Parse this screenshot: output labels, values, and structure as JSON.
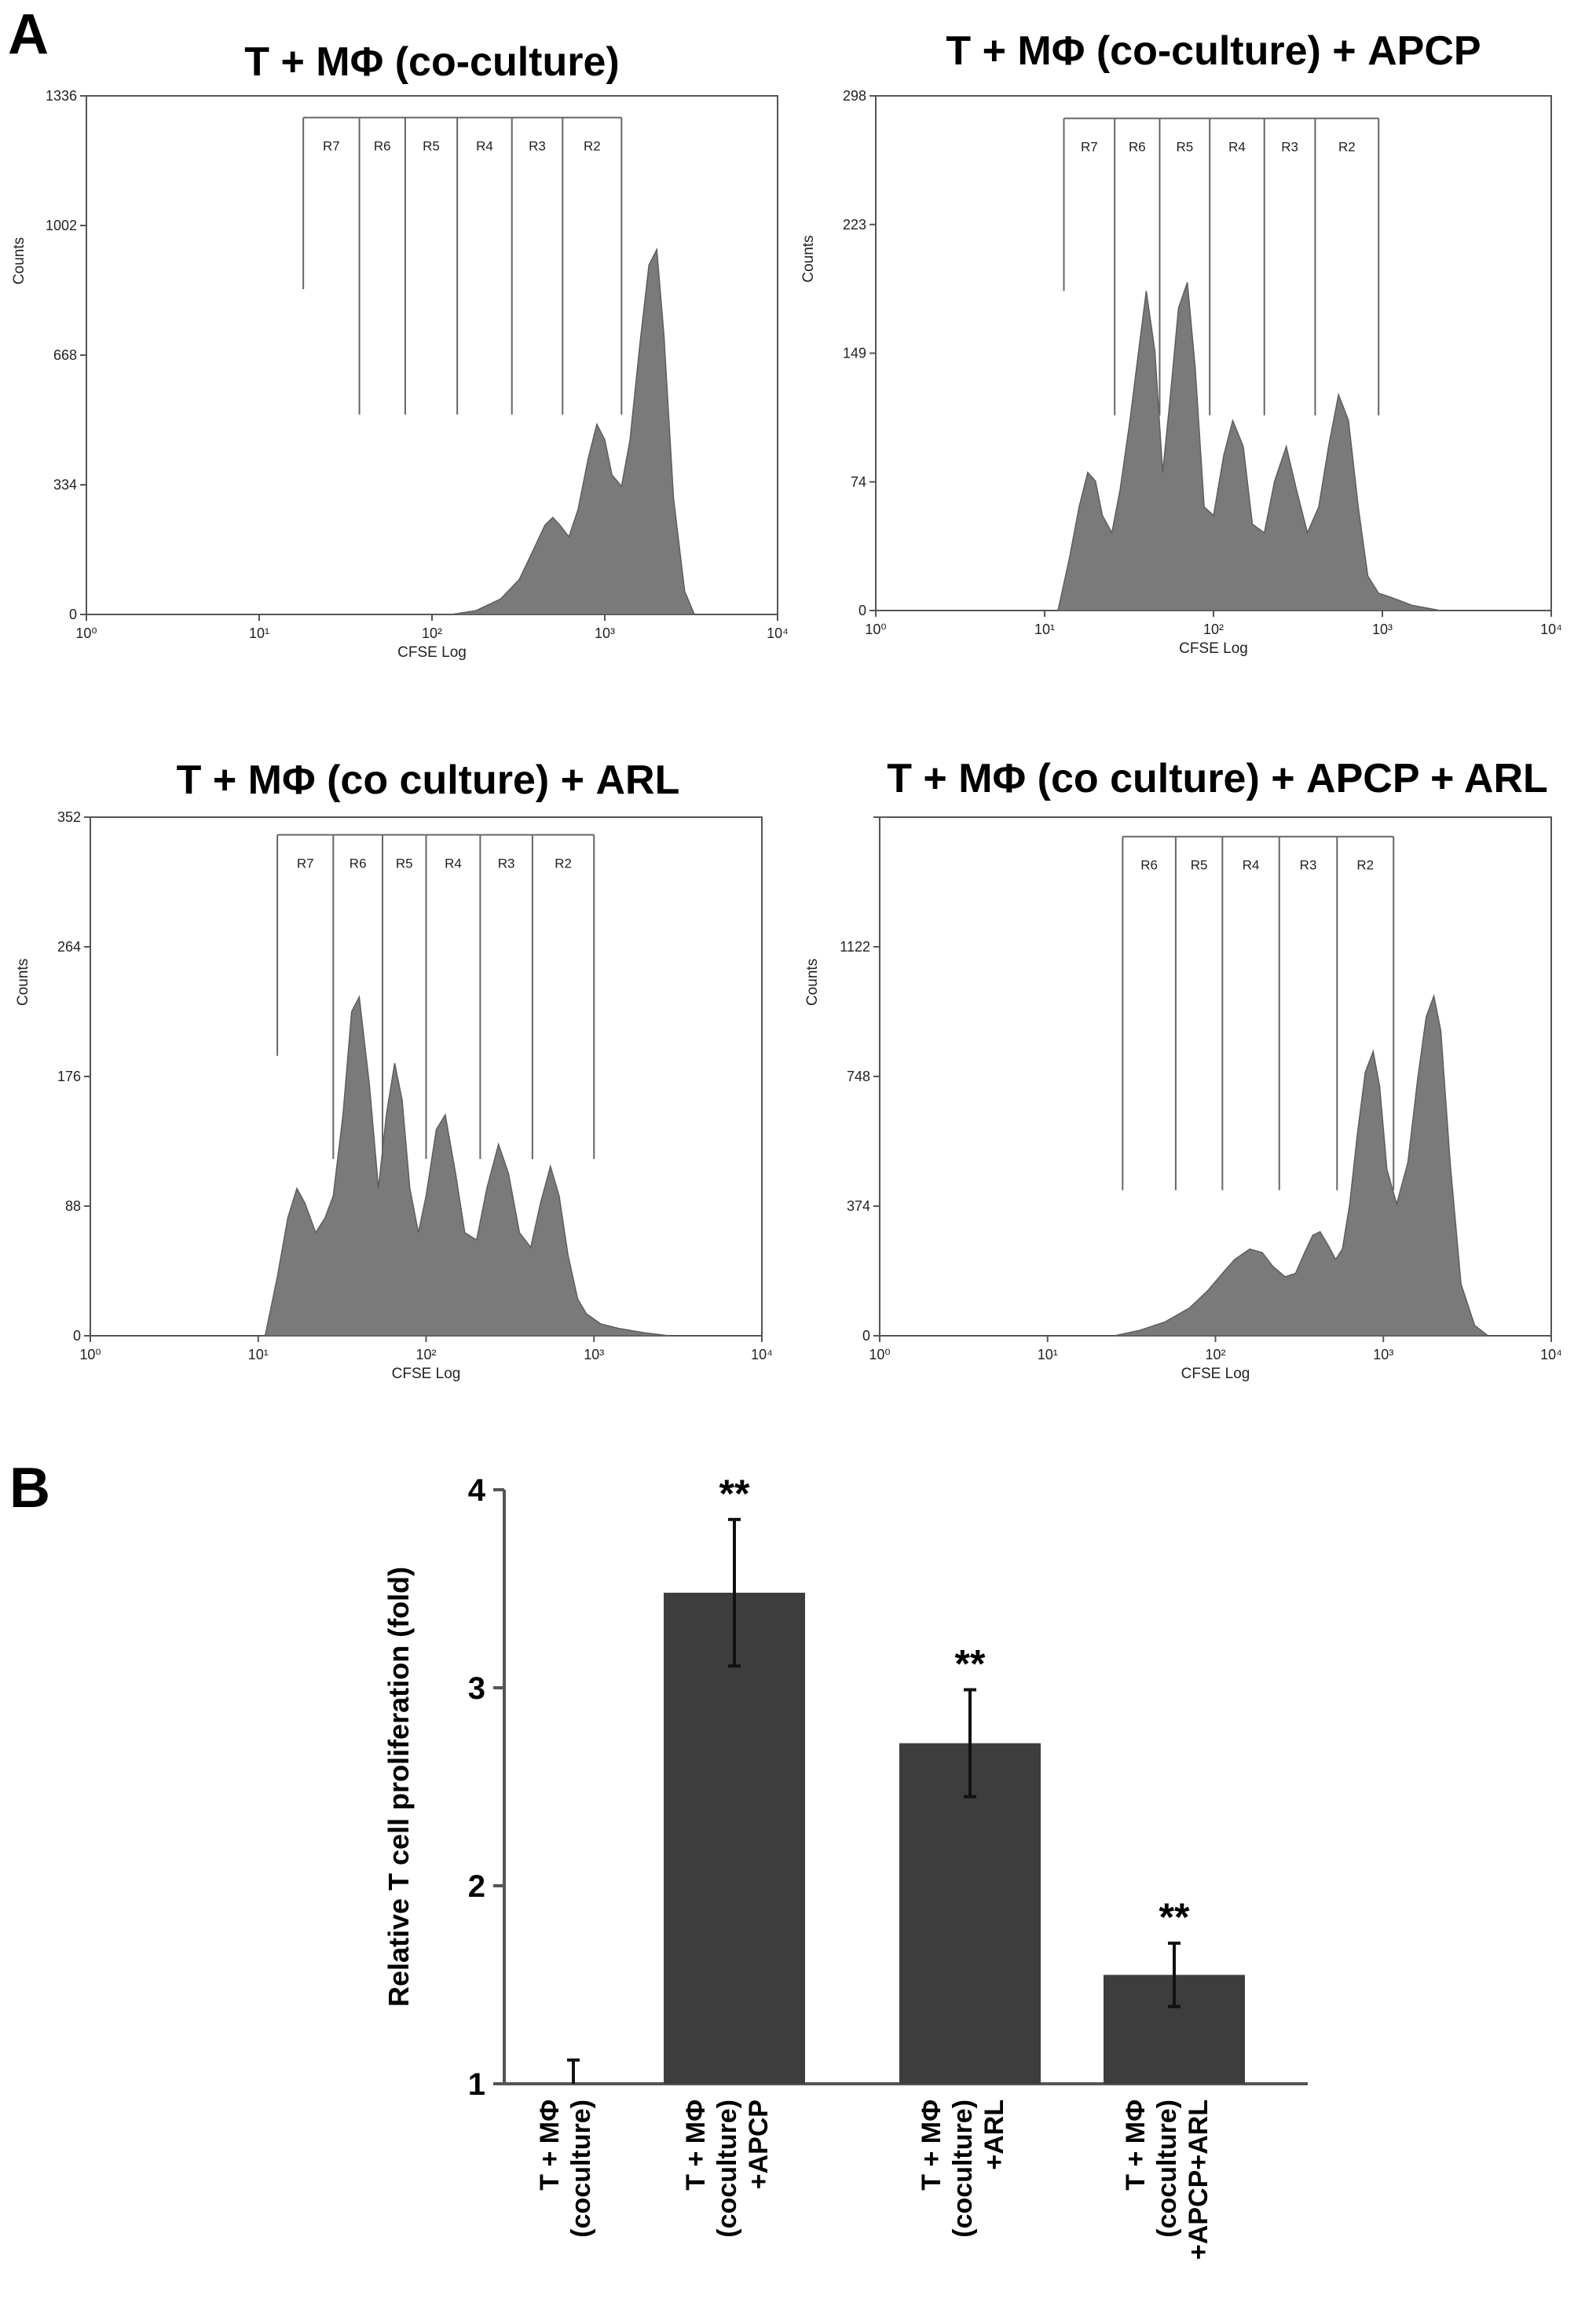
{
  "labels": {
    "panel_a": "A",
    "panel_b": "B"
  },
  "colors": {
    "histogram_fill": "#7a7a7a",
    "bar_fill": "#3d3d3d",
    "axis": "#555555",
    "gate_line": "#666666"
  },
  "chart_data": [
    {
      "type": "area",
      "title": "T + MΦ (co-culture)",
      "xlabel": "CFSE Log",
      "ylabel": "Counts",
      "x_scale": "log",
      "xlim": [
        1,
        10000
      ],
      "x_ticks": [
        1,
        10,
        100,
        1000,
        10000
      ],
      "ylim": [
        0,
        1336
      ],
      "y_ticks": [
        "0",
        "334",
        "668",
        "1002",
        "1336"
      ],
      "gates": [
        {
          "name": "R7",
          "from": 18,
          "to": 38,
          "top": 1280,
          "drop": 838
        },
        {
          "name": "R6",
          "from": 38,
          "to": 70,
          "top": 1280,
          "drop": 515
        },
        {
          "name": "R5",
          "from": 70,
          "to": 140,
          "top": 1280,
          "drop": 515
        },
        {
          "name": "R4",
          "from": 140,
          "to": 290,
          "top": 1280,
          "drop": 515
        },
        {
          "name": "R3",
          "from": 290,
          "to": 570,
          "top": 1280,
          "drop": 515
        },
        {
          "name": "R2",
          "from": 570,
          "to": 1250,
          "top": 1280,
          "drop": 515
        }
      ],
      "series": [
        {
          "x": [
            130,
            180,
            250,
            320,
            380,
            450,
            500,
            550,
            620,
            700,
            800,
            900,
            1000,
            1100,
            1250,
            1400,
            1600,
            1800,
            2000,
            2200,
            2500,
            2900,
            3300
          ],
          "y": [
            0,
            10,
            40,
            90,
            160,
            230,
            250,
            230,
            200,
            270,
            400,
            490,
            450,
            360,
            330,
            450,
            700,
            900,
            940,
            720,
            300,
            60,
            0
          ]
        }
      ]
    },
    {
      "type": "area",
      "title": "T + MΦ (co-culture) + APCP",
      "xlabel": "CFSE Log",
      "ylabel": "Counts",
      "x_scale": "log",
      "xlim": [
        1,
        10000
      ],
      "x_ticks": [
        1,
        10,
        100,
        1000,
        10000
      ],
      "ylim": [
        0,
        298
      ],
      "y_ticks": [
        "0",
        "74",
        "149",
        "223",
        "298"
      ],
      "gates": [
        {
          "name": "R7",
          "from": 13,
          "to": 26,
          "top": 285,
          "drop": 185
        },
        {
          "name": "R6",
          "from": 26,
          "to": 48,
          "top": 285,
          "drop": 113
        },
        {
          "name": "R5",
          "from": 48,
          "to": 95,
          "top": 285,
          "drop": 113
        },
        {
          "name": "R4",
          "from": 95,
          "to": 200,
          "top": 285,
          "drop": 113
        },
        {
          "name": "R3",
          "from": 200,
          "to": 400,
          "top": 285,
          "drop": 113
        },
        {
          "name": "R2",
          "from": 400,
          "to": 950,
          "top": 285,
          "drop": 113
        }
      ],
      "series": [
        {
          "x": [
            12,
            14,
            16,
            18,
            20,
            22,
            25,
            28,
            32,
            36,
            40,
            45,
            50,
            55,
            62,
            70,
            78,
            88,
            100,
            115,
            130,
            150,
            170,
            200,
            230,
            270,
            310,
            360,
            420,
            480,
            550,
            630,
            720,
            820,
            950,
            1100,
            1500,
            2200
          ],
          "y": [
            0,
            30,
            60,
            80,
            75,
            55,
            45,
            70,
            110,
            150,
            185,
            150,
            80,
            120,
            175,
            190,
            140,
            60,
            55,
            90,
            110,
            95,
            50,
            45,
            75,
            95,
            70,
            45,
            60,
            95,
            125,
            110,
            60,
            20,
            10,
            8,
            3,
            0
          ]
        }
      ]
    },
    {
      "type": "area",
      "title": "T + MΦ (co culture) + ARL",
      "xlabel": "CFSE Log",
      "ylabel": "Counts",
      "x_scale": "log",
      "xlim": [
        1,
        10000
      ],
      "x_ticks": [
        1,
        10,
        100,
        1000,
        10000
      ],
      "ylim": [
        0,
        352
      ],
      "y_ticks": [
        "0",
        "88",
        "176",
        "264",
        "352"
      ],
      "gates": [
        {
          "name": "R7",
          "from": 13,
          "to": 28,
          "top": 340,
          "drop": 190
        },
        {
          "name": "R6",
          "from": 28,
          "to": 55,
          "top": 340,
          "drop": 120
        },
        {
          "name": "R5",
          "from": 55,
          "to": 100,
          "top": 340,
          "drop": 120
        },
        {
          "name": "R4",
          "from": 100,
          "to": 210,
          "top": 340,
          "drop": 120
        },
        {
          "name": "R3",
          "from": 210,
          "to": 430,
          "top": 340,
          "drop": 120
        },
        {
          "name": "R2",
          "from": 430,
          "to": 1000,
          "top": 340,
          "drop": 120
        }
      ],
      "series": [
        {
          "x": [
            11,
            13,
            15,
            17,
            19,
            22,
            25,
            28,
            32,
            36,
            40,
            46,
            52,
            58,
            65,
            72,
            80,
            90,
            100,
            115,
            130,
            150,
            170,
            200,
            230,
            270,
            310,
            360,
            420,
            480,
            550,
            620,
            700,
            800,
            900,
            1100,
            1400,
            2000,
            2800
          ],
          "y": [
            0,
            40,
            80,
            100,
            90,
            70,
            80,
            95,
            150,
            220,
            230,
            170,
            100,
            150,
            185,
            160,
            100,
            70,
            95,
            140,
            150,
            110,
            70,
            65,
            100,
            130,
            110,
            70,
            60,
            90,
            115,
            95,
            55,
            25,
            15,
            8,
            5,
            2,
            0
          ]
        }
      ]
    },
    {
      "type": "area",
      "title": "T + MΦ (co culture) + APCP + ARL",
      "xlabel": "CFSE Log",
      "ylabel": "Counts",
      "x_scale": "log",
      "xlim": [
        1,
        10000
      ],
      "x_ticks": [
        1,
        10,
        100,
        1000,
        10000
      ],
      "ylim": [
        0,
        1496
      ],
      "y_ticks": [
        "0",
        "374",
        "748",
        "1122",
        ""
      ],
      "gates": [
        {
          "name": "R6",
          "from": 28,
          "to": 58,
          "top": 1440,
          "drop": 420
        },
        {
          "name": "R5",
          "from": 58,
          "to": 110,
          "top": 1440,
          "drop": 420
        },
        {
          "name": "R4",
          "from": 110,
          "to": 240,
          "top": 1440,
          "drop": 420
        },
        {
          "name": "R3",
          "from": 240,
          "to": 530,
          "top": 1440,
          "drop": 420
        },
        {
          "name": "R2",
          "from": 530,
          "to": 1150,
          "top": 1440,
          "drop": 420
        }
      ],
      "series": [
        {
          "x": [
            25,
            35,
            50,
            70,
            90,
            110,
            130,
            160,
            190,
            220,
            260,
            300,
            340,
            380,
            420,
            470,
            520,
            570,
            630,
            700,
            780,
            870,
            950,
            1050,
            1200,
            1400,
            1600,
            1800,
            2000,
            2200,
            2500,
            2900,
            3500,
            4200
          ],
          "y": [
            0,
            15,
            40,
            80,
            130,
            180,
            220,
            250,
            240,
            200,
            170,
            180,
            240,
            290,
            300,
            260,
            220,
            250,
            380,
            580,
            760,
            820,
            720,
            480,
            380,
            500,
            740,
            920,
            980,
            880,
            500,
            150,
            30,
            0
          ]
        }
      ]
    },
    {
      "type": "bar",
      "title": "",
      "xlabel": "",
      "ylabel": "Relative T cell proliferation (fold)",
      "ylim": [
        1,
        4
      ],
      "y_ticks": [
        "1",
        "2",
        "3",
        "4"
      ],
      "categories": [
        [
          "T + MΦ",
          "(coculture)"
        ],
        [
          "T + MΦ",
          "(coculture)",
          "+APCP"
        ],
        [
          "T + MΦ",
          "(coculture)",
          "+ARL"
        ],
        [
          "T + MΦ",
          "(coculture)",
          "+APCP+ARL"
        ]
      ],
      "values": [
        1.0,
        3.48,
        2.72,
        1.55
      ],
      "errors": [
        0.12,
        0.37,
        0.27,
        0.16
      ],
      "annotations": [
        "",
        "**",
        "**",
        "**"
      ]
    }
  ]
}
